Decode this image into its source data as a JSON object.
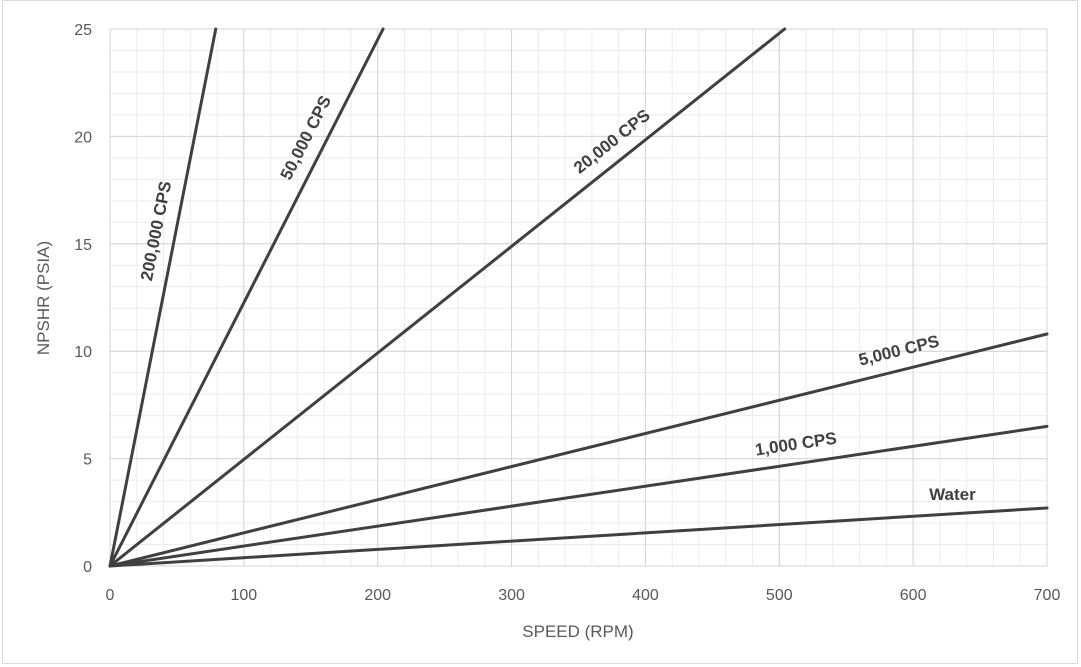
{
  "chart_data": {
    "type": "line",
    "xlabel": "SPEED (RPM)",
    "ylabel": "NPSHR (PSIA)",
    "xlim": [
      0,
      700
    ],
    "ylim": [
      0,
      25
    ],
    "x_ticks": [
      "0",
      "100",
      "200",
      "300",
      "400",
      "500",
      "600",
      "700"
    ],
    "y_ticks": [
      "0",
      "5",
      "10",
      "15",
      "20",
      "25"
    ],
    "x_major_step": 100,
    "x_minor_step": 20,
    "y_major_step": 5,
    "y_minor_step": 1,
    "grid": true,
    "legend": "none",
    "line_color": "#404040",
    "series": [
      {
        "name": "Water",
        "x": [
          0,
          700
        ],
        "y": [
          0,
          2.7
        ]
      },
      {
        "name": "1,000 CPS",
        "x": [
          0,
          700
        ],
        "y": [
          0,
          6.5
        ]
      },
      {
        "name": "5,000 CPS",
        "x": [
          0,
          700
        ],
        "y": [
          0,
          10.8
        ]
      },
      {
        "name": "20,000 CPS",
        "x": [
          0,
          504
        ],
        "y": [
          0,
          25
        ]
      },
      {
        "name": "50,000 CPS",
        "x": [
          0,
          204
        ],
        "y": [
          0,
          25
        ]
      },
      {
        "name": "200,000 CPS",
        "x": [
          0,
          79
        ],
        "y": [
          0,
          25
        ]
      }
    ]
  }
}
